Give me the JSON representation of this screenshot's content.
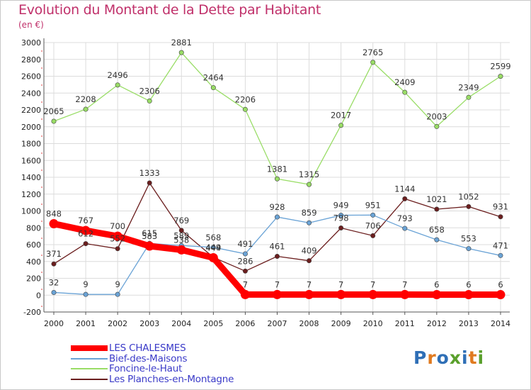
{
  "header": {
    "title": "Evolution du Montant de la Dette par Habitant",
    "unit": "(en €)"
  },
  "logo": {
    "text": "Proxiti",
    "colors": [
      "#2f6fb6",
      "#e07a1f",
      "#2f6fb6",
      "#5aa02c",
      "#2f6fb6",
      "#e07a1f",
      "#5aa02c"
    ]
  },
  "chart_data": {
    "type": "line",
    "title": "Evolution du Montant de la Dette par Habitant",
    "ylabel": "(en €)",
    "xlabel": "",
    "x": [
      "2000",
      "2001",
      "2002",
      "2003",
      "2004",
      "2005",
      "2006",
      "2007",
      "2008",
      "2009",
      "2010",
      "2011",
      "2012",
      "2013",
      "2014"
    ],
    "ylim": [
      -200,
      3000
    ],
    "yticks": [
      "-200",
      "0",
      "200",
      "400",
      "600",
      "800",
      "1000",
      "1200",
      "1400",
      "1600",
      "1800",
      "2000",
      "2200",
      "2400",
      "2600",
      "2800",
      "3000"
    ],
    "grid": true,
    "legend_position": "bottom-left",
    "series": [
      {
        "name": "LES CHALESMES",
        "color": "#ff0000",
        "values": [
          848,
          767,
          700,
          583,
          538,
          444,
          7,
          7,
          7,
          7,
          7,
          7,
          6,
          6,
          6
        ],
        "labels": [
          "848",
          "767",
          "700",
          "583",
          "538",
          "444",
          "7",
          "7",
          "7",
          "7",
          "7",
          "7",
          "6",
          "6",
          "6"
        ]
      },
      {
        "name": "Bief-des-Maisons",
        "color": "#6aa3d6",
        "values": [
          32,
          9,
          9,
          615,
          589,
          568,
          491,
          928,
          859,
          949,
          951,
          793,
          658,
          553,
          471
        ],
        "labels": [
          "32",
          "9",
          "9",
          "615",
          "589",
          "568",
          "491",
          "928",
          "859",
          "949",
          "951",
          "793",
          "658",
          "553",
          "471"
        ]
      },
      {
        "name": "Foncine-le-Haut",
        "color": "#99dd66",
        "values": [
          2065,
          2208,
          2496,
          2306,
          2881,
          2464,
          2206,
          1381,
          1315,
          2017,
          2765,
          2409,
          2003,
          2349,
          2599
        ],
        "labels": [
          "2065",
          "2208",
          "2496",
          "2306",
          "2881",
          "2464",
          "2206",
          "1381",
          "1315",
          "2017",
          "2765",
          "2409",
          "2003",
          "2349",
          "2599"
        ]
      },
      {
        "name": "Les Planches-en-Montagne",
        "color": "#6b1e1e",
        "values": [
          371,
          612,
          552,
          1333,
          769,
          449,
          286,
          461,
          409,
          798,
          706,
          1144,
          1021,
          1052,
          931
        ],
        "labels": [
          "371",
          "612",
          "552",
          "1333",
          "769",
          "449",
          "286",
          "461",
          "409",
          "798",
          "706",
          "1144",
          "1021",
          "1052",
          "931"
        ]
      }
    ]
  }
}
